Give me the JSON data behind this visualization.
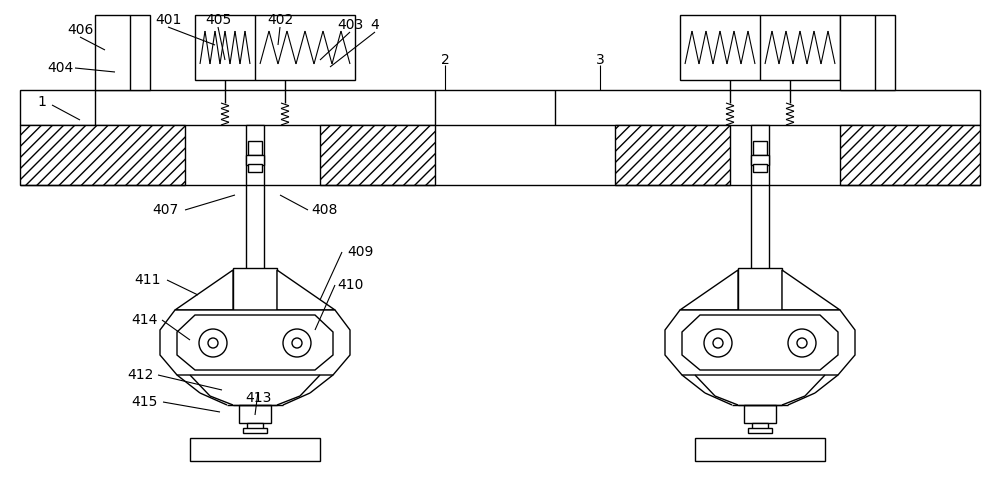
{
  "line_color": "#000000",
  "bg_color": "#ffffff",
  "lw": 1.0,
  "fig_width": 10.0,
  "fig_height": 4.8,
  "label_fs": 10
}
